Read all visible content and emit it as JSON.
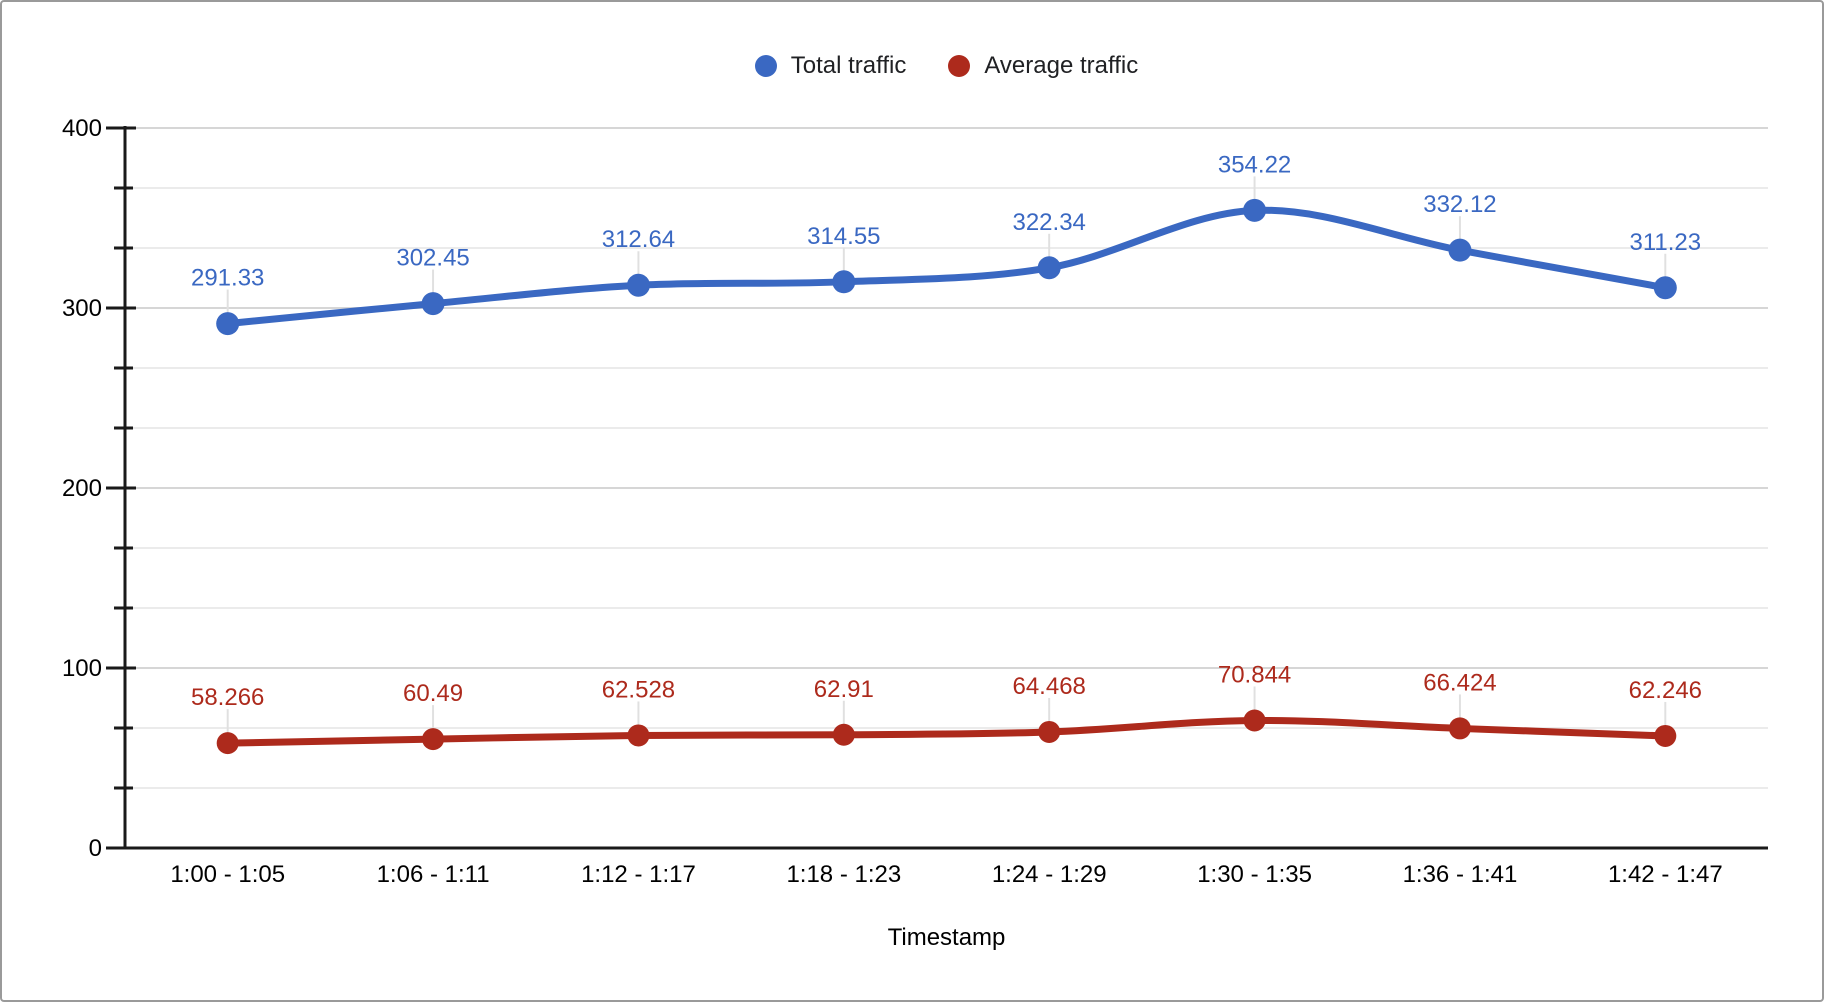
{
  "legend": {
    "items": [
      {
        "label": "Total traffic",
        "color": "#3a68c2"
      },
      {
        "label": "Average traffic",
        "color": "#ad2a1c"
      }
    ]
  },
  "chart_data": {
    "type": "line",
    "smooth": true,
    "title": "",
    "xlabel": "Timestamp",
    "ylabel": "",
    "ylim": [
      0,
      400
    ],
    "y_major_ticks": [
      0,
      100,
      200,
      300,
      400
    ],
    "y_minor_divisions_per_major": 3,
    "grid": "horizontal",
    "legend_position": "top-center",
    "categories": [
      "1:00 - 1:05",
      "1:06 - 1:11",
      "1:12 - 1:17",
      "1:18 - 1:23",
      "1:24 - 1:29",
      "1:30 - 1:35",
      "1:36 - 1:41",
      "1:42 - 1:47"
    ],
    "series": [
      {
        "name": "Total traffic",
        "color": "#3a68c2",
        "values": [
          291.33,
          302.45,
          312.64,
          314.55,
          322.34,
          354.22,
          332.12,
          311.23
        ],
        "labels": [
          "291.33",
          "302.45",
          "312.64",
          "314.55",
          "322.34",
          "354.22",
          "332.12",
          "311.23"
        ]
      },
      {
        "name": "Average traffic",
        "color": "#ad2a1c",
        "values": [
          58.266,
          60.49,
          62.528,
          62.91,
          64.468,
          70.844,
          66.424,
          62.246
        ],
        "labels": [
          "58.266",
          "60.49",
          "62.528",
          "62.91",
          "64.468",
          "70.844",
          "66.424",
          "62.246"
        ]
      }
    ]
  },
  "colors": {
    "background": "#ffffff",
    "border": "#9a9a9a",
    "axis": "#1a1a1a",
    "grid_major": "#d6d6d6",
    "grid_minor": "#ebebeb",
    "leader_line": "#e0e0e0",
    "tick_label": "#000000"
  }
}
